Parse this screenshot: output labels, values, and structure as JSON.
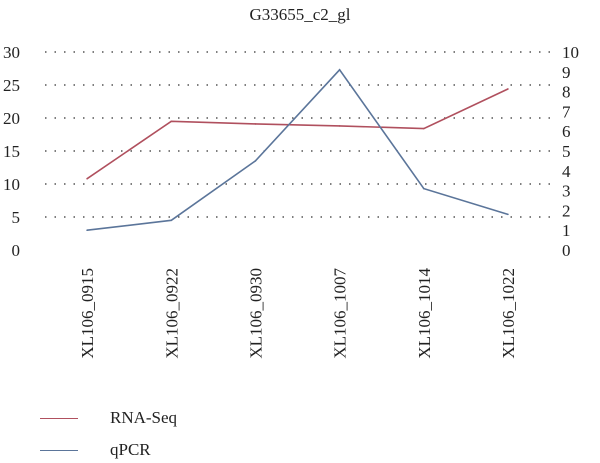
{
  "chart_data": {
    "type": "line",
    "title": "G33655_c2_gl",
    "categories": [
      "XL106_0915",
      "XL106_0922",
      "XL106_0930",
      "XL106_1007",
      "XL106_1014",
      "XL106_1022"
    ],
    "y_left": {
      "ticks": [
        "0",
        "5",
        "10",
        "15",
        "20",
        "25",
        "30"
      ],
      "ylim": [
        0,
        30
      ]
    },
    "y_right": {
      "ticks": [
        "0",
        "1",
        "2",
        "3",
        "4",
        "5",
        "6",
        "7",
        "8",
        "9",
        "10"
      ],
      "ylim": [
        0,
        10
      ]
    },
    "grid": "dotted horizontal",
    "legend_position": "bottom-left",
    "series": [
      {
        "name": "RNA-Seq",
        "axis": "left",
        "color": "#b0505e",
        "values": [
          10.8,
          19.5,
          19.1,
          18.8,
          18.4,
          24.4
        ]
      },
      {
        "name": "qPCR",
        "axis": "right",
        "color": "#5b759a",
        "values": [
          1.0,
          1.5,
          4.5,
          9.1,
          3.1,
          1.8
        ]
      }
    ]
  }
}
